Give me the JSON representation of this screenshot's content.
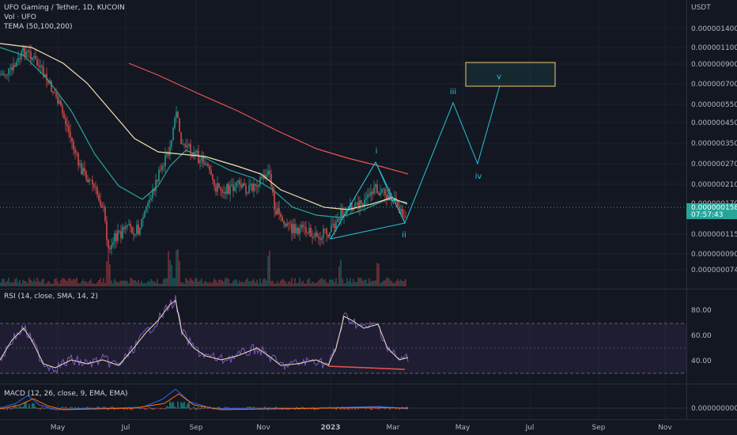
{
  "header": {
    "symbol_line": "UFO Gaming / Tether, 1D, KUCOIN",
    "volume_line": "Vol · UFO",
    "tema_line": "TEMA (50,100,200)"
  },
  "rsi_panel": {
    "label": "RSI (14, close, SMA, 14, 2)"
  },
  "macd_panel": {
    "label": "MACD (12, 26, close, 9, EMA, EMA)"
  },
  "price_axis": {
    "currency": "USDT",
    "ticks": [
      "0.0000014000",
      "0.0000011000",
      "0.0000009000",
      "0.0000007000",
      "0.0000005500",
      "0.0000004500",
      "0.0000003500",
      "0.0000002700",
      "0.0000002100",
      "0.0000001700",
      "0.0000001150",
      "0.0000000900",
      "0.0000000740"
    ],
    "current_price": "0.0000001586",
    "countdown": "07:57:43"
  },
  "rsi_axis": {
    "ticks": [
      "80.00",
      "60.00",
      "40.00"
    ]
  },
  "macd_axis": {
    "ticks": [
      "0.0000000000"
    ]
  },
  "time_axis": {
    "labels": [
      "May",
      "Jul",
      "Sep",
      "Nov",
      "2023",
      "Mar",
      "May",
      "Jul",
      "Sep",
      "Nov"
    ]
  },
  "wave_labels": [
    "i",
    "ii",
    "iii",
    "iv",
    "v"
  ],
  "colors": {
    "background": "#131722",
    "tema_fast": "#26a69a",
    "tema_mid": "#f0e4b0",
    "tema_slow": "#ef5350",
    "wave": "#26c6da",
    "rsi": "#7e57c2",
    "rsi_ma": "#f0e4b0",
    "up": "#26a69a",
    "down": "#ef5350",
    "target_box": "#f5c76a"
  },
  "chart_data": {
    "type": "line",
    "title": "UFO Gaming / Tether, 1D, KUCOIN",
    "x": [
      "May",
      "Jul",
      "Sep",
      "Nov",
      "2023",
      "Mar"
    ],
    "series": [
      {
        "name": "TEMA (50,100,200)",
        "values": [
          1e-06,
          2e-07,
          3e-07,
          2e-07,
          1.3e-07,
          1.6e-07
        ]
      }
    ],
    "y_scale": "log",
    "current_price": 1.586e-07,
    "elliott_projection": {
      "labels": [
        "i",
        "ii",
        "iii",
        "iv",
        "v"
      ],
      "values": [
        2.7e-07,
        1.4e-07,
        5.5e-07,
        2.7e-07,
        7e-07
      ]
    },
    "rsi": {
      "ylim": [
        20,
        90
      ],
      "band": [
        30,
        70
      ],
      "values": [
        40,
        65,
        45,
        75,
        45,
        35,
        42,
        38,
        75,
        60,
        42
      ]
    },
    "macd": {
      "zero": 0
    }
  }
}
